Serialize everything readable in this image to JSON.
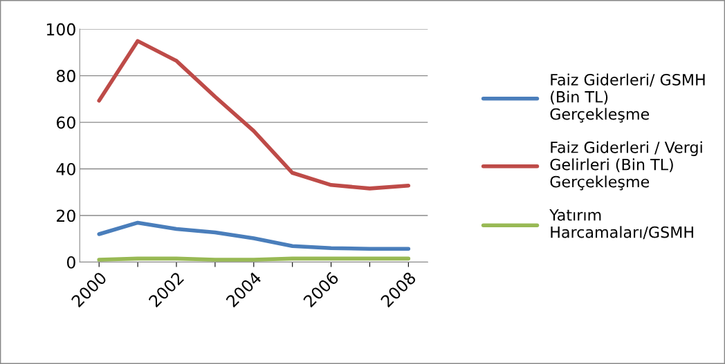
{
  "chart_data": {
    "type": "line",
    "categories": [
      "2000",
      null,
      "2002",
      null,
      "2004",
      null,
      "2006",
      null,
      "2008"
    ],
    "series": [
      {
        "name": "Faiz Giderleri/ GSMH (Bin TL) Gerçekleşme",
        "color": "#4a7ebb",
        "values": [
          12,
          16.9,
          14.2,
          12.7,
          10.2,
          6.9,
          6,
          5.7,
          5.7
        ]
      },
      {
        "name": "Faiz Giderleri / Vergi Gelirleri (Bin TL) Gerçekleşme",
        "color": "#be4b48",
        "values": [
          69.3,
          94.9,
          86.4,
          71,
          56.3,
          38.3,
          33.1,
          31.6,
          32.8
        ]
      },
      {
        "name": "Yatırım Harcamaları/GSMH",
        "color": "#98b954",
        "values": [
          1,
          1.5,
          1.5,
          1,
          1,
          1.5,
          1.5,
          1.5,
          1.5
        ]
      }
    ],
    "ylim": [
      0,
      100
    ],
    "yticks": [
      0,
      20,
      40,
      60,
      80,
      100
    ],
    "grid": "y",
    "legend": "right",
    "marker": "none",
    "line_style": "solid"
  }
}
